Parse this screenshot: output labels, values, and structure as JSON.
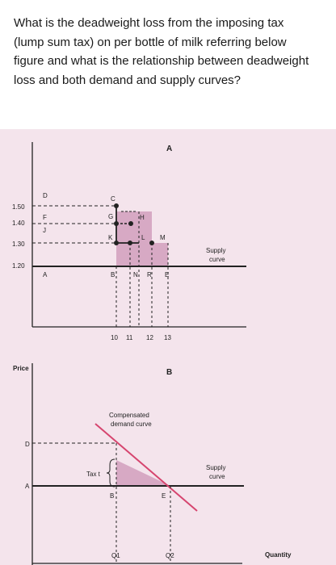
{
  "question": {
    "text": "What is the deadweight loss from the imposing tax (lump sum tax) on per bottle of milk referring below figure and what is the relationship between deadweight loss and both demand and supply curves?"
  },
  "figure_a": {
    "panel_label": "A",
    "price_ticks": [
      "1.50",
      "1.40",
      "1.30",
      "1.20"
    ],
    "quantity_ticks": [
      "10",
      "11",
      "12",
      "13"
    ],
    "price_line_labels": [
      "D",
      "F",
      "J",
      "A"
    ],
    "point_labels": [
      "C",
      "G",
      "H",
      "K",
      "L",
      "M",
      "B",
      "N",
      "R",
      "E"
    ],
    "supply_label_line1": "Supply",
    "supply_label_line2": "curve"
  },
  "figure_b": {
    "panel_label": "B",
    "y_axis_label": "Price",
    "x_axis_label": "Quantity",
    "demand_label_line1": "Compensated",
    "demand_label_line2": "demand curve",
    "tax_label": "Tax t",
    "price_labels": [
      "D",
      "A"
    ],
    "point_labels": [
      "B",
      "E"
    ],
    "quantity_labels": [
      "Q1",
      "Q2"
    ],
    "supply_label_line1": "Supply",
    "supply_label_line2": "curve"
  },
  "colors": {
    "background": "#f4e4ec",
    "shade": "#d7a9c4",
    "demand_line": "#d6456f",
    "axis": "#222222"
  }
}
